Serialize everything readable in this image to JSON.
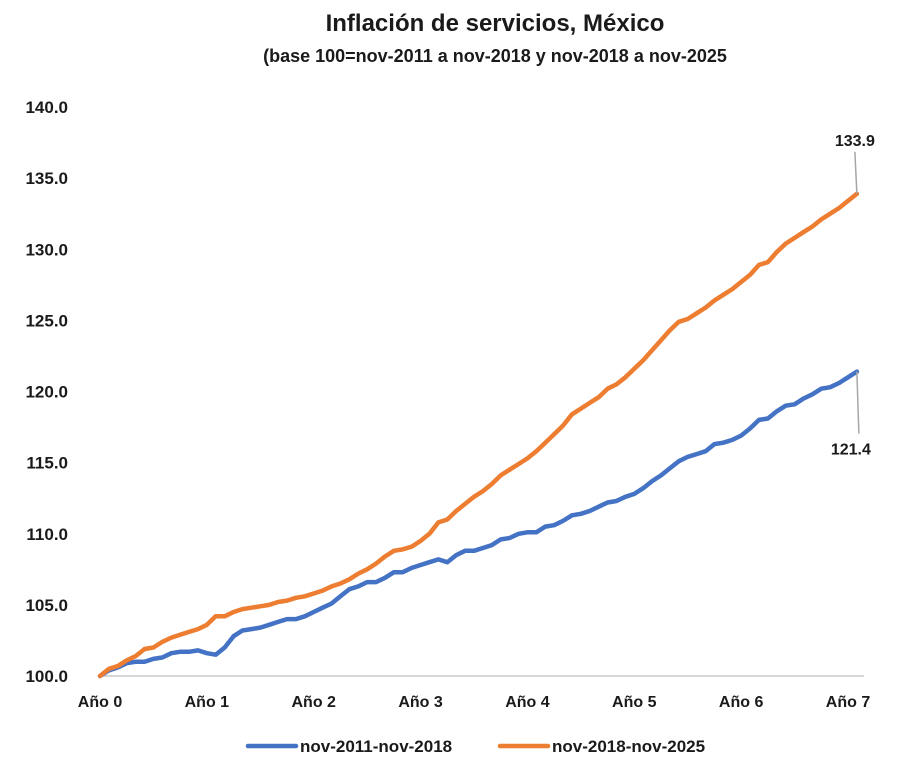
{
  "chart_data": {
    "type": "line",
    "title": "Inflación de servicios, México",
    "subtitle": "(base 100=nov-2011 a nov-2018 y nov-2018 a nov-2025",
    "xlabel": "",
    "ylabel": "",
    "ylim": [
      100,
      140
    ],
    "yticks": [
      "100.0",
      "105.0",
      "110.0",
      "115.0",
      "120.0",
      "125.0",
      "130.0",
      "135.0",
      "140.0"
    ],
    "xticks": [
      "Año 0",
      "Año 1",
      "Año 2",
      "Año 3",
      "Año 4",
      "Año 5",
      "Año 6",
      "Año 7"
    ],
    "xlim": [
      0,
      7
    ],
    "grid": false,
    "legend_position": "bottom",
    "series": [
      {
        "name": "nov-2011-nov-2018",
        "color": "#4472C4",
        "points": [
          [
            0,
            100.0
          ],
          [
            0.083,
            100.4
          ],
          [
            0.167,
            100.6
          ],
          [
            0.25,
            100.9
          ],
          [
            0.333,
            101.0
          ],
          [
            0.417,
            101.0
          ],
          [
            0.5,
            101.2
          ],
          [
            0.583,
            101.3
          ],
          [
            0.667,
            101.6
          ],
          [
            0.75,
            101.7
          ],
          [
            0.833,
            101.7
          ],
          [
            0.917,
            101.8
          ],
          [
            1.0,
            101.6
          ],
          [
            1.083,
            101.5
          ],
          [
            1.167,
            102.0
          ],
          [
            1.25,
            102.8
          ],
          [
            1.333,
            103.2
          ],
          [
            1.417,
            103.3
          ],
          [
            1.5,
            103.4
          ],
          [
            1.583,
            103.6
          ],
          [
            1.667,
            103.8
          ],
          [
            1.75,
            104.0
          ],
          [
            1.833,
            104.0
          ],
          [
            1.917,
            104.2
          ],
          [
            2.0,
            104.5
          ],
          [
            2.083,
            104.8
          ],
          [
            2.167,
            105.1
          ],
          [
            2.25,
            105.6
          ],
          [
            2.333,
            106.1
          ],
          [
            2.417,
            106.3
          ],
          [
            2.5,
            106.6
          ],
          [
            2.583,
            106.6
          ],
          [
            2.667,
            106.9
          ],
          [
            2.75,
            107.3
          ],
          [
            2.833,
            107.3
          ],
          [
            2.917,
            107.6
          ],
          [
            3.0,
            107.8
          ],
          [
            3.083,
            108.0
          ],
          [
            3.167,
            108.2
          ],
          [
            3.25,
            108.0
          ],
          [
            3.333,
            108.5
          ],
          [
            3.417,
            108.8
          ],
          [
            3.5,
            108.8
          ],
          [
            3.583,
            109.0
          ],
          [
            3.667,
            109.2
          ],
          [
            3.75,
            109.6
          ],
          [
            3.833,
            109.7
          ],
          [
            3.917,
            110.0
          ],
          [
            4.0,
            110.1
          ],
          [
            4.083,
            110.1
          ],
          [
            4.167,
            110.5
          ],
          [
            4.25,
            110.6
          ],
          [
            4.333,
            110.9
          ],
          [
            4.417,
            111.3
          ],
          [
            4.5,
            111.4
          ],
          [
            4.583,
            111.6
          ],
          [
            4.667,
            111.9
          ],
          [
            4.75,
            112.2
          ],
          [
            4.833,
            112.3
          ],
          [
            4.917,
            112.6
          ],
          [
            5.0,
            112.8
          ],
          [
            5.083,
            113.2
          ],
          [
            5.167,
            113.7
          ],
          [
            5.25,
            114.1
          ],
          [
            5.333,
            114.6
          ],
          [
            5.417,
            115.1
          ],
          [
            5.5,
            115.4
          ],
          [
            5.583,
            115.6
          ],
          [
            5.667,
            115.8
          ],
          [
            5.75,
            116.3
          ],
          [
            5.833,
            116.4
          ],
          [
            5.917,
            116.6
          ],
          [
            6.0,
            116.9
          ],
          [
            6.083,
            117.4
          ],
          [
            6.167,
            118.0
          ],
          [
            6.25,
            118.1
          ],
          [
            6.333,
            118.6
          ],
          [
            6.417,
            119.0
          ],
          [
            6.5,
            119.1
          ],
          [
            6.583,
            119.5
          ],
          [
            6.667,
            119.8
          ],
          [
            6.75,
            120.2
          ],
          [
            6.833,
            120.3
          ],
          [
            6.917,
            120.6
          ],
          [
            7.0,
            121.0
          ],
          [
            7.083,
            121.4
          ]
        ],
        "end_label": "121.4"
      },
      {
        "name": "nov-2018-nov-2025",
        "color": "#ED7D31",
        "points": [
          [
            0,
            100.0
          ],
          [
            0.083,
            100.5
          ],
          [
            0.167,
            100.7
          ],
          [
            0.25,
            101.1
          ],
          [
            0.333,
            101.4
          ],
          [
            0.417,
            101.9
          ],
          [
            0.5,
            102.0
          ],
          [
            0.583,
            102.4
          ],
          [
            0.667,
            102.7
          ],
          [
            0.75,
            102.9
          ],
          [
            0.833,
            103.1
          ],
          [
            0.917,
            103.3
          ],
          [
            1.0,
            103.6
          ],
          [
            1.083,
            104.2
          ],
          [
            1.167,
            104.2
          ],
          [
            1.25,
            104.5
          ],
          [
            1.333,
            104.7
          ],
          [
            1.417,
            104.8
          ],
          [
            1.5,
            104.9
          ],
          [
            1.583,
            105.0
          ],
          [
            1.667,
            105.2
          ],
          [
            1.75,
            105.3
          ],
          [
            1.833,
            105.5
          ],
          [
            1.917,
            105.6
          ],
          [
            2.0,
            105.8
          ],
          [
            2.083,
            106.0
          ],
          [
            2.167,
            106.3
          ],
          [
            2.25,
            106.5
          ],
          [
            2.333,
            106.8
          ],
          [
            2.417,
            107.2
          ],
          [
            2.5,
            107.5
          ],
          [
            2.583,
            107.9
          ],
          [
            2.667,
            108.4
          ],
          [
            2.75,
            108.8
          ],
          [
            2.833,
            108.9
          ],
          [
            2.917,
            109.1
          ],
          [
            3.0,
            109.5
          ],
          [
            3.083,
            110.0
          ],
          [
            3.167,
            110.8
          ],
          [
            3.25,
            111.0
          ],
          [
            3.333,
            111.6
          ],
          [
            3.417,
            112.1
          ],
          [
            3.5,
            112.6
          ],
          [
            3.583,
            113.0
          ],
          [
            3.667,
            113.5
          ],
          [
            3.75,
            114.1
          ],
          [
            3.833,
            114.5
          ],
          [
            3.917,
            114.9
          ],
          [
            4.0,
            115.3
          ],
          [
            4.083,
            115.8
          ],
          [
            4.167,
            116.4
          ],
          [
            4.25,
            117.0
          ],
          [
            4.333,
            117.6
          ],
          [
            4.417,
            118.4
          ],
          [
            4.5,
            118.8
          ],
          [
            4.583,
            119.2
          ],
          [
            4.667,
            119.6
          ],
          [
            4.75,
            120.2
          ],
          [
            4.833,
            120.5
          ],
          [
            4.917,
            121.0
          ],
          [
            5.0,
            121.6
          ],
          [
            5.083,
            122.2
          ],
          [
            5.167,
            122.9
          ],
          [
            5.25,
            123.6
          ],
          [
            5.333,
            124.3
          ],
          [
            5.417,
            124.9
          ],
          [
            5.5,
            125.1
          ],
          [
            5.583,
            125.5
          ],
          [
            5.667,
            125.9
          ],
          [
            5.75,
            126.4
          ],
          [
            5.833,
            126.8
          ],
          [
            5.917,
            127.2
          ],
          [
            6.0,
            127.7
          ],
          [
            6.083,
            128.2
          ],
          [
            6.167,
            128.9
          ],
          [
            6.25,
            129.1
          ],
          [
            6.333,
            129.8
          ],
          [
            6.417,
            130.4
          ],
          [
            6.5,
            130.8
          ],
          [
            6.583,
            131.2
          ],
          [
            6.667,
            131.6
          ],
          [
            6.75,
            132.1
          ],
          [
            6.833,
            132.5
          ],
          [
            6.917,
            132.9
          ],
          [
            7.0,
            133.4
          ],
          [
            7.083,
            133.9
          ]
        ],
        "end_label": "133.9"
      }
    ]
  }
}
